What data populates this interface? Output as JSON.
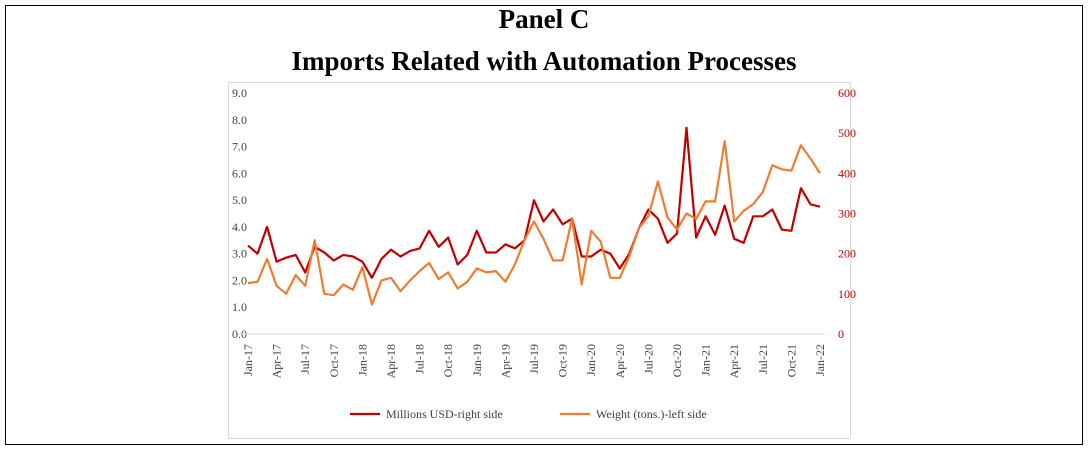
{
  "chart_data": {
    "type": "line",
    "title": [
      "Panel C",
      "Imports Related with Automation Processes"
    ],
    "categories": [
      "Jan-17",
      null,
      null,
      "Apr-17",
      null,
      null,
      "Jul-17",
      null,
      null,
      "Oct-17",
      null,
      null,
      "Jan-18",
      null,
      null,
      "Apr-18",
      null,
      null,
      "Jul-18",
      null,
      null,
      "Oct-18",
      null,
      null,
      "Jan-19",
      null,
      null,
      "Apr-19",
      null,
      null,
      "Jul-19",
      null,
      null,
      "Oct-19",
      null,
      null,
      "Jan-20",
      null,
      null,
      "Apr-20",
      null,
      null,
      "Jul-20",
      null,
      null,
      "Oct-20",
      null,
      null,
      "Jan-21",
      null,
      null,
      "Apr-21",
      null,
      null,
      "Jul-21",
      null,
      null,
      "Oct-21",
      null,
      null,
      "Jan-22"
    ],
    "series": [
      {
        "name": "Millions USD-right side",
        "color": "#c00000",
        "axis": "y2",
        "values": [
          220,
          200,
          267,
          180,
          190,
          197,
          153,
          217,
          203,
          183,
          197,
          193,
          180,
          140,
          187,
          210,
          193,
          207,
          213,
          257,
          217,
          240,
          173,
          197,
          257,
          203,
          203,
          223,
          213,
          233,
          333,
          280,
          310,
          273,
          287,
          193,
          193,
          210,
          200,
          163,
          200,
          263,
          310,
          287,
          227,
          250,
          513,
          240,
          293,
          247,
          320,
          237,
          227,
          293,
          293,
          310,
          260,
          257,
          363,
          323,
          317
        ]
      },
      {
        "name": "Weight (tons.)-left side",
        "color": "#ed7d31",
        "values": [
          1.9,
          1.95,
          2.8,
          1.8,
          1.5,
          2.2,
          1.8,
          3.5,
          1.5,
          1.45,
          1.85,
          1.65,
          2.5,
          1.1,
          2.0,
          2.1,
          1.6,
          2.0,
          2.35,
          2.65,
          2.05,
          2.3,
          1.7,
          1.95,
          2.45,
          2.3,
          2.35,
          1.95,
          2.6,
          3.5,
          4.2,
          3.55,
          2.75,
          2.75,
          4.3,
          1.85,
          3.85,
          3.45,
          2.1,
          2.1,
          2.9,
          3.95,
          4.4,
          5.7,
          4.35,
          3.9,
          4.5,
          4.3,
          4.95,
          4.95,
          7.2,
          4.2,
          4.6,
          4.85,
          5.3,
          6.3,
          6.15,
          6.1,
          7.05,
          6.55,
          6.0
        ]
      }
    ],
    "ylim": [
      0,
      9
    ],
    "yticks": [
      {
        "value": 0,
        "label": "0.0"
      },
      {
        "value": 1,
        "label": "1.0"
      },
      {
        "value": 2,
        "label": "2.0"
      },
      {
        "value": 3,
        "label": "3.0"
      },
      {
        "value": 4,
        "label": "4.0"
      },
      {
        "value": 5,
        "label": "5.0"
      },
      {
        "value": 6,
        "label": "6.0"
      },
      {
        "value": 7,
        "label": "7.0"
      },
      {
        "value": 8,
        "label": "8.0"
      },
      {
        "value": 9,
        "label": "9.0"
      }
    ],
    "y2lim": [
      0,
      600
    ],
    "y2ticks": [
      0,
      100,
      200,
      300,
      400,
      500,
      600
    ],
    "legend": "bottom"
  }
}
